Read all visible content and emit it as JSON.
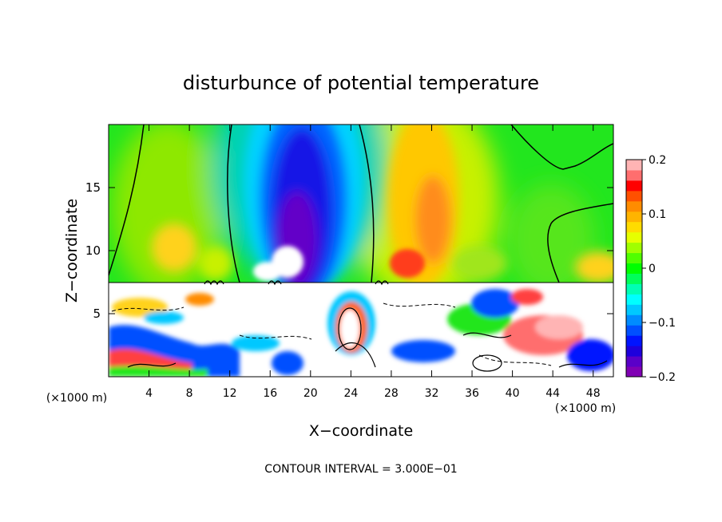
{
  "chart_data": {
    "type": "heatmap",
    "title": "disturbunce of potential temperature",
    "xlabel": "X−coordinate",
    "ylabel": "Z−coordinate",
    "x_unit": "(×1000 m)",
    "x_unit_right": "(×1000 m)",
    "xlim": [
      0,
      50
    ],
    "ylim": [
      0,
      20
    ],
    "x_ticks": [
      4,
      8,
      12,
      16,
      20,
      24,
      28,
      32,
      36,
      40,
      44,
      48
    ],
    "x_tick_labels": [
      "4",
      "8",
      "12",
      "16",
      "20",
      "24",
      "28",
      "32",
      "36",
      "40",
      "44",
      "48"
    ],
    "y_ticks": [
      5,
      10,
      15
    ],
    "y_tick_labels": [
      "5",
      "10",
      "15"
    ],
    "colorbar": {
      "range": [
        -0.2,
        0.2
      ],
      "tick_labels": [
        "0.2",
        "0.1",
        "0",
        "−0.1",
        "−0.2"
      ],
      "tick_values": [
        0.2,
        0.1,
        0,
        -0.1,
        -0.2
      ],
      "colors": [
        "#8000b4",
        "#5a00c8",
        "#1e00dc",
        "#0014ff",
        "#0050ff",
        "#008cff",
        "#00c8ff",
        "#00ffff",
        "#00ffb4",
        "#00ff5a",
        "#00ff00",
        "#50ff00",
        "#a0ff00",
        "#e6ff00",
        "#ffdc00",
        "#ffb400",
        "#ff8c00",
        "#ff5000",
        "#ff0000",
        "#ff6e6e",
        "#ffb4b4"
      ]
    },
    "contour_interval": "CONTOUR INTERVAL = 3.000E−01",
    "features": [
      {
        "description": "negative anomaly column",
        "x_center": 19,
        "z_range": [
          7.5,
          20
        ],
        "min_value": -0.2
      },
      {
        "description": "positive anomaly",
        "x_center": 30,
        "z_range": [
          7.5,
          20
        ],
        "max_value": 0.13
      },
      {
        "description": "positive anomaly",
        "x_center": 12,
        "z_range": [
          8,
          12
        ],
        "max_value": 0.1
      }
    ],
    "grid": false
  }
}
